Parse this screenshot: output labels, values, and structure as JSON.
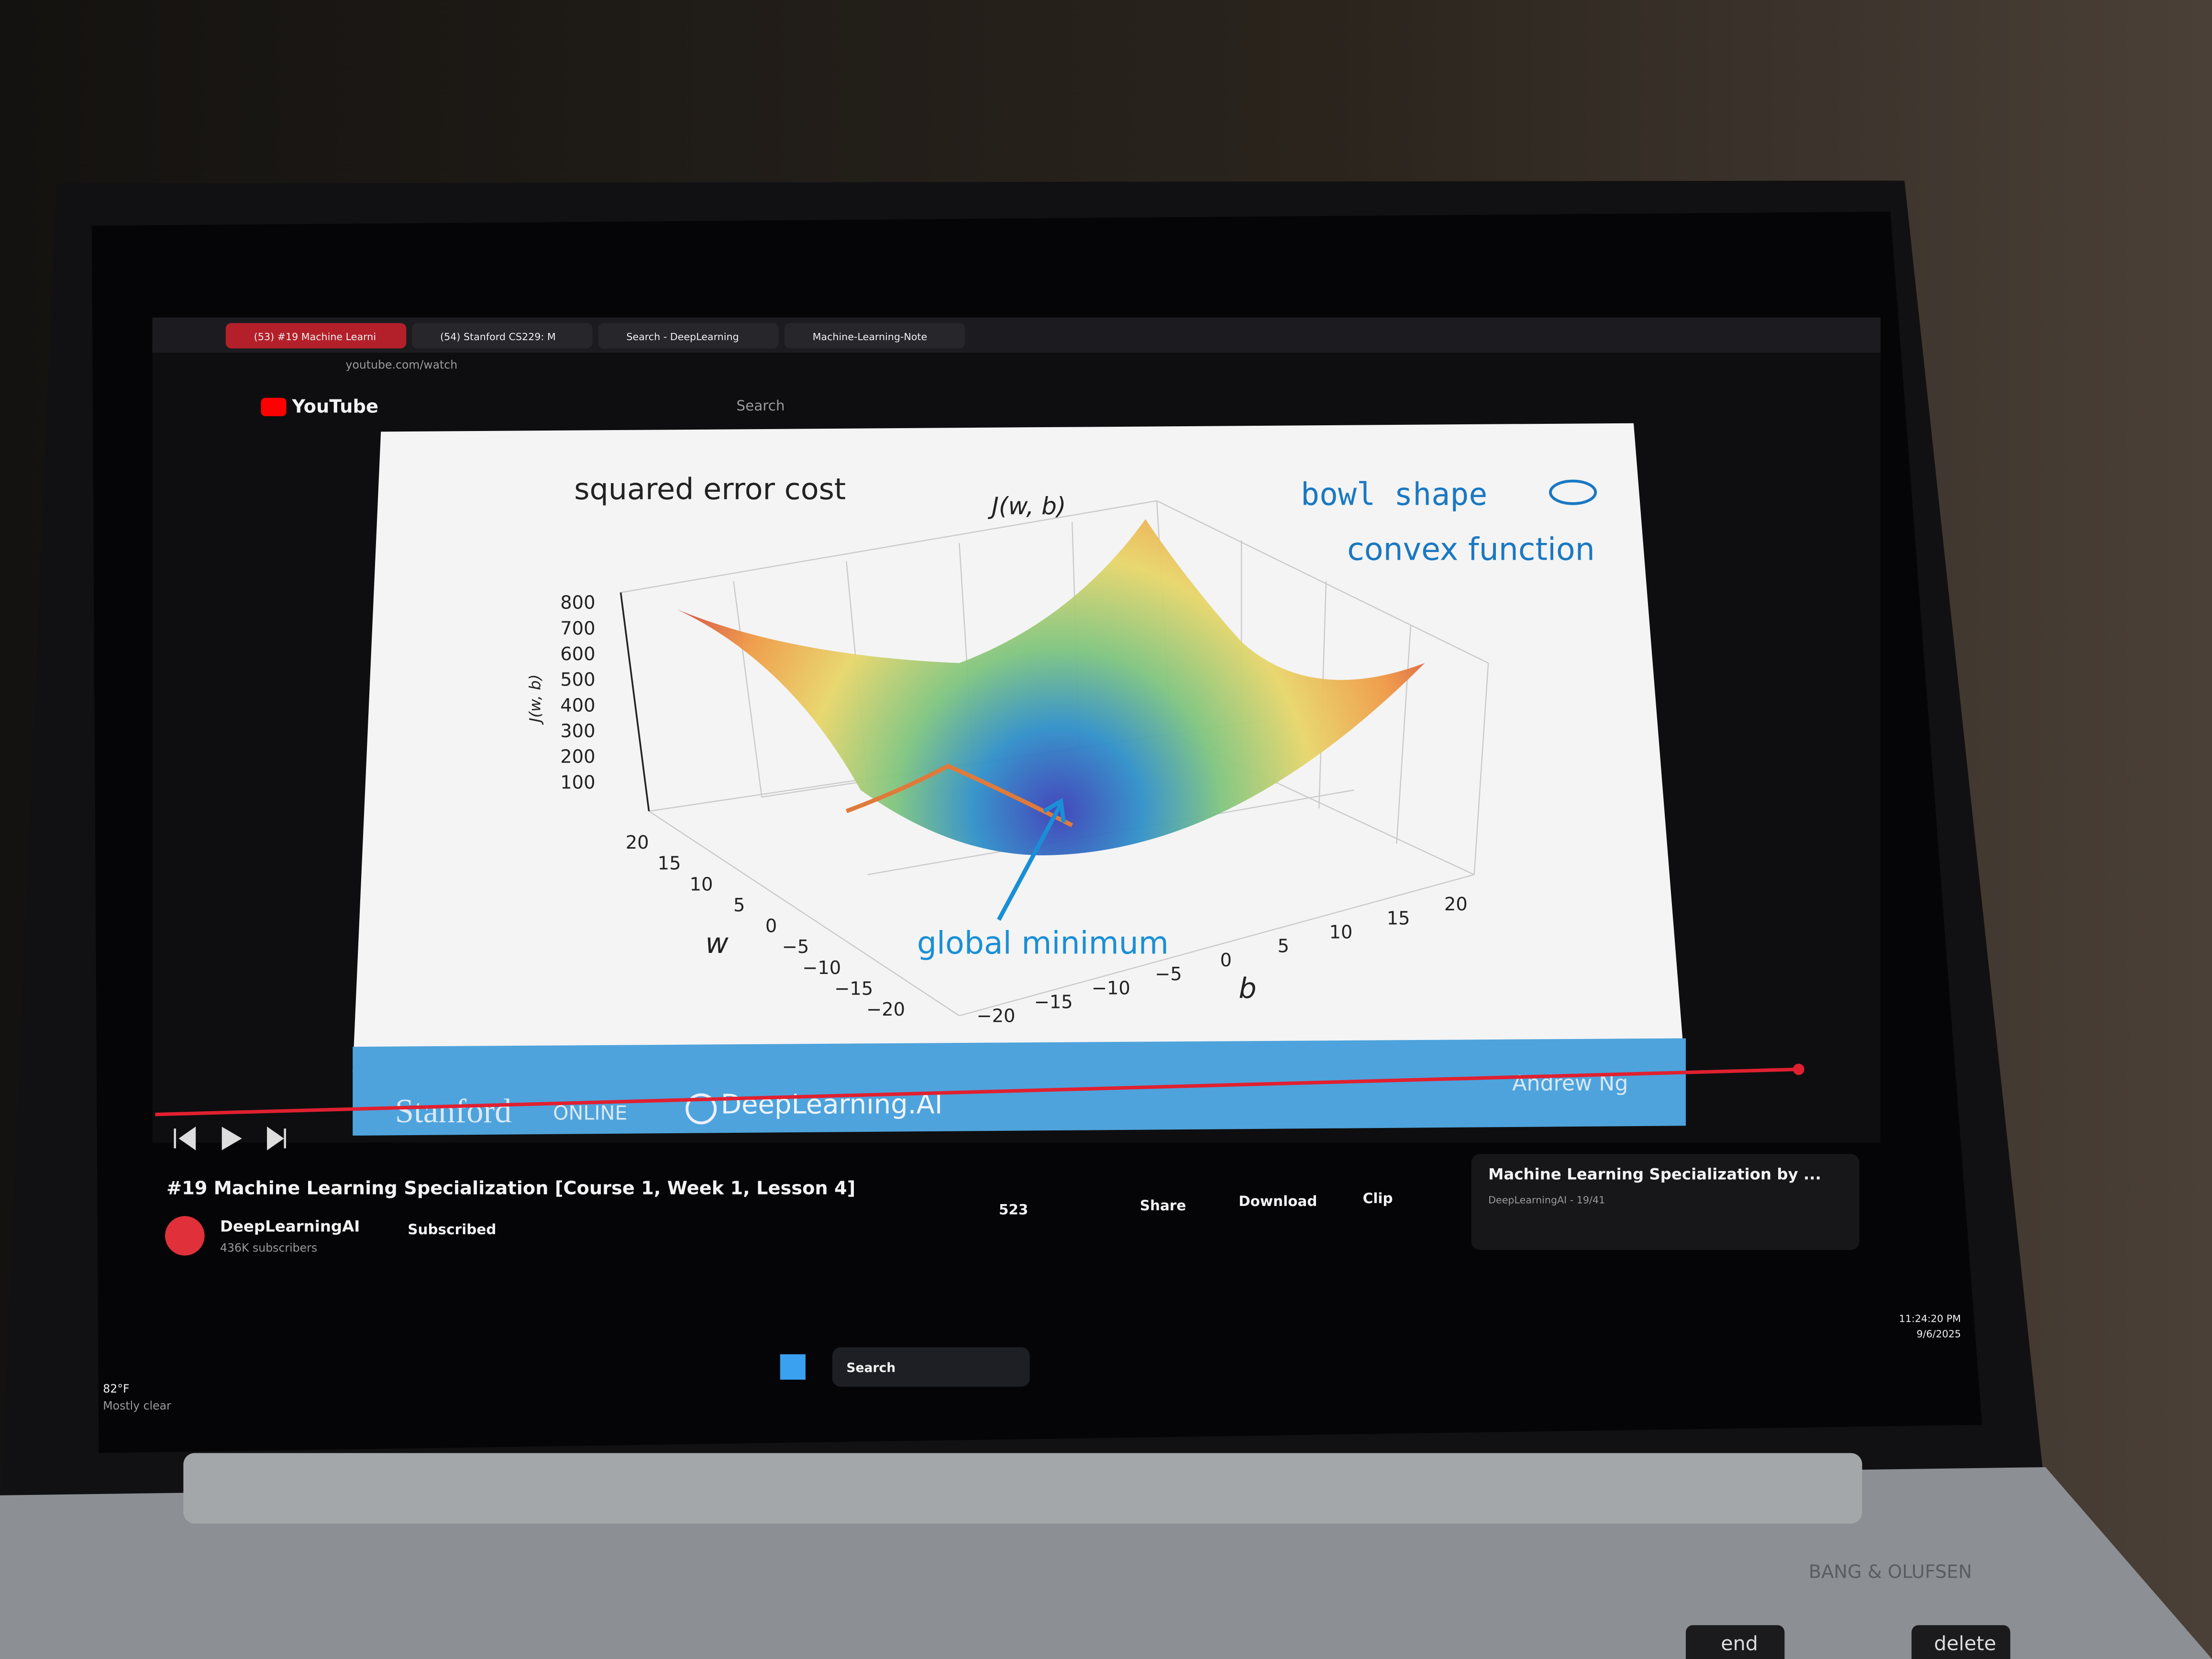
{
  "browser": {
    "tabs": [
      "(53) #19 Machine Learni",
      "(54) Stanford CS229: M",
      "Search - DeepLearning",
      "Machine-Learning-Note"
    ],
    "url": "youtube.com/watch"
  },
  "youtube": {
    "logo": "YouTube",
    "search": "Search"
  },
  "slide": {
    "title": "squared error cost",
    "z_label": "J(w, b)",
    "z_axis_title": "J(w, b)",
    "note1": "bowl shape",
    "note2": "convex function",
    "annotation": "global minimum",
    "z_ticks": [
      "800",
      "700",
      "600",
      "500",
      "400",
      "300",
      "200",
      "100"
    ],
    "w_label": "w",
    "w_ticks": [
      "20",
      "15",
      "10",
      "5",
      "0",
      "−5",
      "−10",
      "−15",
      "−20"
    ],
    "b_label": "b",
    "b_ticks": [
      "−20",
      "−15",
      "−10",
      "−5",
      "0",
      "5",
      "10",
      "15",
      "20"
    ],
    "footer": {
      "stanford": "Stanford",
      "online": "ONLINE",
      "brand": "DeepLearning.AI",
      "author": "Andrew Ng"
    }
  },
  "video": {
    "title": "#19 Machine Learning Specialization [Course 1, Week 1, Lesson 4]",
    "channel": "DeepLearningAI",
    "subscribers": "436K subscribers",
    "subscribe": "Subscribed",
    "likes": "523",
    "share": "Share",
    "download": "Download",
    "clip": "Clip"
  },
  "playlist": {
    "title": "Machine Learning Specialization by ...",
    "meta": "DeepLearningAI - 19/41"
  },
  "taskbar": {
    "search": "Search",
    "weather_temp": "82°F",
    "weather": "Mostly clear",
    "time": "11:24:20 PM",
    "date": "9/6/2025"
  },
  "laptop": {
    "brand": "BANG & OLUFSEN",
    "keys": [
      "end",
      "delete"
    ]
  }
}
